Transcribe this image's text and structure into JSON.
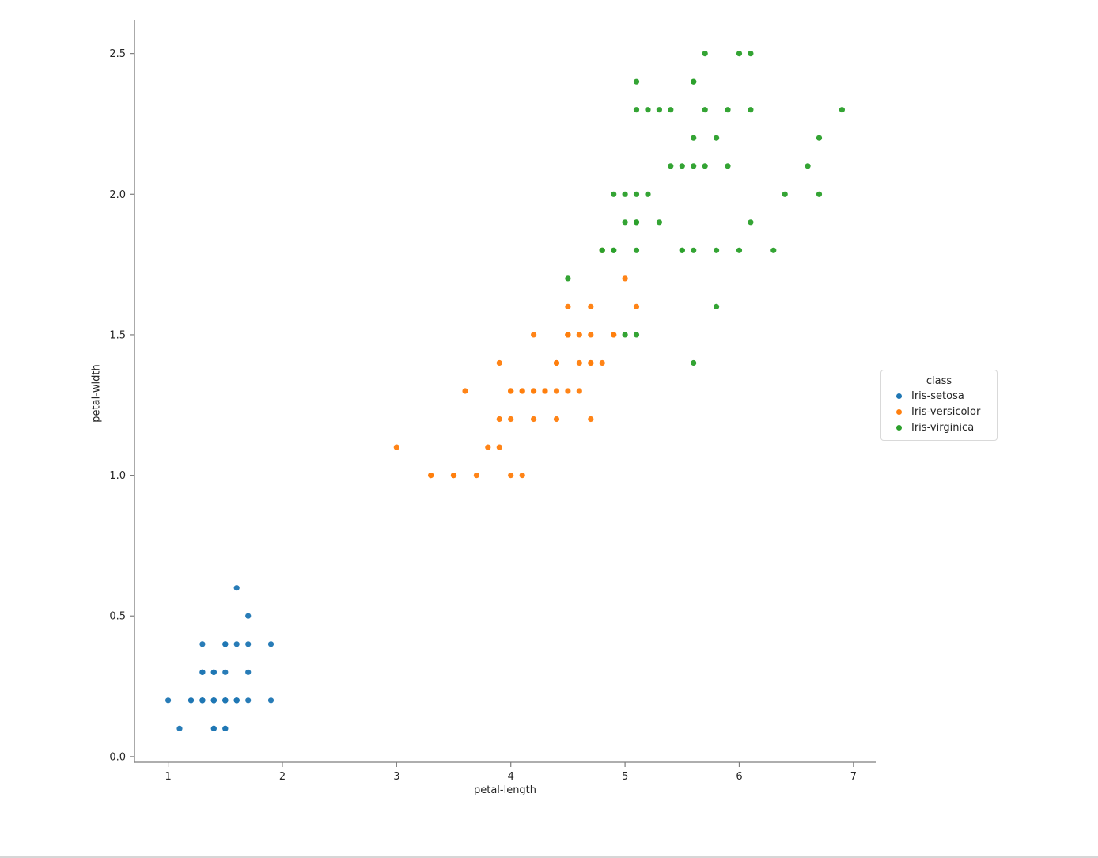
{
  "figure": {
    "background": "#ffffff",
    "text_color": "#262626",
    "spine_color": "#7d7d7d"
  },
  "chart_data": {
    "type": "scatter",
    "title": "",
    "xlabel": "petal-length",
    "ylabel": "petal-width",
    "grid": false,
    "marker_radius": 3.6,
    "xlim": [
      0.705,
      7.195
    ],
    "ylim": [
      -0.02,
      2.62
    ],
    "xticks": [
      1,
      2,
      3,
      4,
      5,
      6,
      7
    ],
    "xtick_labels": [
      "1",
      "2",
      "3",
      "4",
      "5",
      "6",
      "7"
    ],
    "yticks": [
      0.0,
      0.5,
      1.0,
      1.5,
      2.0,
      2.5
    ],
    "ytick_labels": [
      "0.0",
      "0.5",
      "1.0",
      "1.5",
      "2.0",
      "2.5"
    ],
    "legend": {
      "title": "class",
      "position": "center-right-outside"
    },
    "series": [
      {
        "name": "Iris-setosa",
        "color": "#1f77b4",
        "x": [
          1.4,
          1.4,
          1.3,
          1.5,
          1.4,
          1.7,
          1.4,
          1.5,
          1.4,
          1.5,
          1.5,
          1.6,
          1.4,
          1.1,
          1.2,
          1.5,
          1.3,
          1.4,
          1.7,
          1.5,
          1.7,
          1.5,
          1.0,
          1.7,
          1.9,
          1.6,
          1.6,
          1.5,
          1.4,
          1.6,
          1.6,
          1.5,
          1.5,
          1.4,
          1.5,
          1.2,
          1.3,
          1.4,
          1.3,
          1.5,
          1.3,
          1.3,
          1.3,
          1.6,
          1.9,
          1.4,
          1.6,
          1.4,
          1.5,
          1.4
        ],
        "y": [
          0.2,
          0.2,
          0.2,
          0.2,
          0.2,
          0.4,
          0.3,
          0.2,
          0.2,
          0.1,
          0.2,
          0.2,
          0.1,
          0.1,
          0.2,
          0.4,
          0.4,
          0.3,
          0.3,
          0.3,
          0.2,
          0.4,
          0.2,
          0.5,
          0.2,
          0.2,
          0.4,
          0.2,
          0.2,
          0.2,
          0.2,
          0.4,
          0.1,
          0.2,
          0.2,
          0.2,
          0.2,
          0.1,
          0.2,
          0.2,
          0.3,
          0.3,
          0.2,
          0.6,
          0.4,
          0.3,
          0.2,
          0.2,
          0.2,
          0.2
        ]
      },
      {
        "name": "Iris-versicolor",
        "color": "#ff7f0e",
        "x": [
          4.7,
          4.5,
          4.9,
          4.0,
          4.6,
          4.5,
          4.7,
          3.3,
          4.6,
          3.9,
          3.5,
          4.2,
          4.0,
          4.7,
          3.6,
          4.4,
          4.5,
          4.1,
          4.5,
          3.9,
          4.8,
          4.0,
          4.9,
          4.7,
          4.3,
          4.4,
          4.8,
          5.0,
          4.5,
          3.5,
          3.8,
          3.7,
          3.9,
          5.1,
          4.5,
          4.5,
          4.7,
          4.4,
          4.1,
          4.0,
          4.4,
          4.6,
          4.0,
          3.3,
          4.2,
          4.2,
          4.2,
          4.3,
          3.0,
          4.1
        ],
        "y": [
          1.4,
          1.5,
          1.5,
          1.3,
          1.5,
          1.3,
          1.6,
          1.0,
          1.3,
          1.4,
          1.0,
          1.5,
          1.0,
          1.4,
          1.3,
          1.4,
          1.5,
          1.0,
          1.5,
          1.1,
          1.8,
          1.3,
          1.5,
          1.2,
          1.3,
          1.4,
          1.4,
          1.7,
          1.5,
          1.0,
          1.1,
          1.0,
          1.2,
          1.6,
          1.5,
          1.6,
          1.5,
          1.3,
          1.3,
          1.3,
          1.2,
          1.4,
          1.2,
          1.0,
          1.3,
          1.2,
          1.3,
          1.3,
          1.1,
          1.3
        ]
      },
      {
        "name": "Iris-virginica",
        "color": "#2ca02c",
        "x": [
          6.0,
          5.1,
          5.9,
          5.6,
          5.8,
          6.6,
          4.5,
          6.3,
          5.8,
          6.1,
          5.1,
          5.3,
          5.5,
          5.0,
          5.1,
          5.3,
          5.5,
          6.7,
          6.9,
          5.0,
          5.7,
          4.9,
          6.7,
          4.9,
          5.7,
          6.0,
          4.8,
          4.9,
          5.6,
          5.8,
          6.1,
          6.4,
          5.6,
          5.1,
          5.6,
          6.1,
          5.6,
          5.5,
          4.8,
          5.4,
          5.6,
          5.1,
          5.1,
          5.9,
          5.7,
          5.2,
          5.0,
          5.2,
          5.4,
          5.1
        ],
        "y": [
          2.5,
          1.9,
          2.1,
          1.8,
          2.2,
          2.1,
          1.7,
          1.8,
          1.8,
          2.5,
          2.0,
          1.9,
          2.1,
          2.0,
          2.4,
          2.3,
          1.8,
          2.2,
          2.3,
          1.5,
          2.3,
          2.0,
          2.0,
          1.8,
          2.1,
          1.8,
          1.8,
          1.8,
          2.1,
          1.6,
          1.9,
          2.0,
          2.2,
          1.5,
          1.4,
          2.3,
          2.4,
          1.8,
          1.8,
          2.1,
          2.4,
          2.3,
          1.9,
          2.3,
          2.5,
          2.3,
          1.9,
          2.0,
          2.3,
          1.8
        ]
      }
    ]
  }
}
